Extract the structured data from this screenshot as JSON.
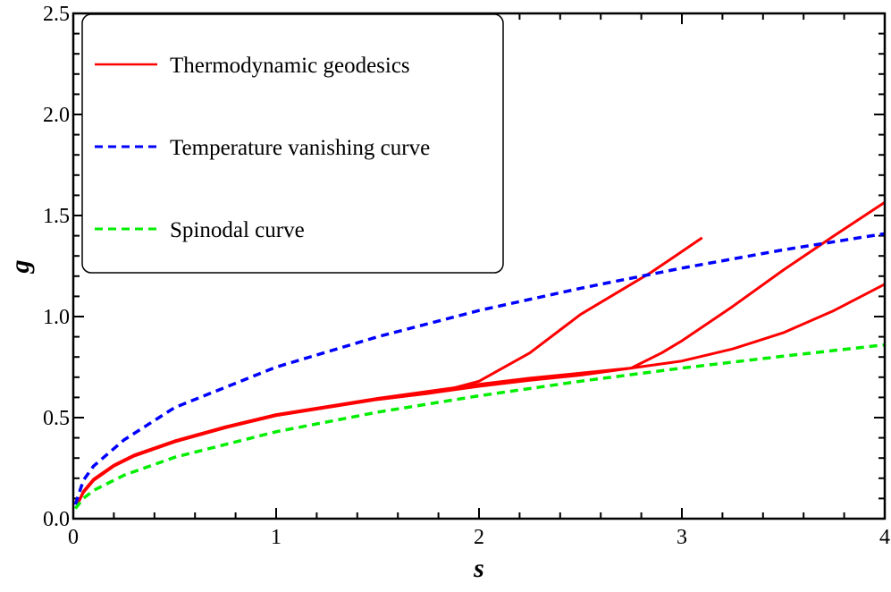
{
  "chart_data": {
    "type": "line",
    "title": "",
    "xlabel": "s",
    "ylabel": "g",
    "xlim": [
      0,
      4
    ],
    "ylim": [
      0,
      2.5
    ],
    "xticks": [
      "0",
      "1",
      "2",
      "3",
      "4"
    ],
    "yticks": [
      "0.0",
      "0.5",
      "1.0",
      "1.5",
      "2.0",
      "2.5"
    ],
    "grid": false,
    "legend_position": "top-left",
    "legend": [
      {
        "label": "Thermodynamic geodesics",
        "color": "#ff0000",
        "style": "solid"
      },
      {
        "label": "Temperature vanishing curve",
        "color": "#0000ff",
        "style": "dashed"
      },
      {
        "label": "Spinodal curve",
        "color": "#00ee00",
        "style": "dashed"
      }
    ],
    "series": [
      {
        "group": "Thermodynamic geodesics",
        "color": "#ff0000",
        "style": "solid",
        "points": [
          [
            0.02,
            0.07
          ],
          [
            0.05,
            0.13
          ],
          [
            0.1,
            0.19
          ],
          [
            0.2,
            0.26
          ],
          [
            0.3,
            0.31
          ],
          [
            0.5,
            0.38
          ],
          [
            0.75,
            0.45
          ],
          [
            1,
            0.51
          ],
          [
            1.25,
            0.55
          ],
          [
            1.5,
            0.59
          ],
          [
            1.75,
            0.62
          ],
          [
            1.85,
            0.64
          ],
          [
            2.0,
            0.68
          ],
          [
            2.25,
            0.82
          ],
          [
            2.5,
            1.01
          ],
          [
            2.75,
            1.16
          ],
          [
            2.85,
            1.22
          ],
          [
            3.1,
            1.39
          ]
        ]
      },
      {
        "group": "Thermodynamic geodesics",
        "color": "#ff0000",
        "style": "solid",
        "points": [
          [
            0.02,
            0.07
          ],
          [
            0.05,
            0.13
          ],
          [
            0.1,
            0.19
          ],
          [
            0.2,
            0.26
          ],
          [
            0.3,
            0.31
          ],
          [
            0.5,
            0.38
          ],
          [
            0.75,
            0.45
          ],
          [
            1,
            0.51
          ],
          [
            1.25,
            0.55
          ],
          [
            1.5,
            0.59
          ],
          [
            1.75,
            0.62
          ],
          [
            2.0,
            0.655
          ],
          [
            2.25,
            0.685
          ],
          [
            2.5,
            0.71
          ],
          [
            2.75,
            0.745
          ],
          [
            2.9,
            0.82
          ],
          [
            3.0,
            0.88
          ],
          [
            3.25,
            1.05
          ],
          [
            3.5,
            1.23
          ],
          [
            3.75,
            1.4
          ],
          [
            4.0,
            1.565
          ]
        ]
      },
      {
        "group": "Thermodynamic geodesics",
        "color": "#ff0000",
        "style": "solid",
        "points": [
          [
            0.02,
            0.07
          ],
          [
            0.05,
            0.135
          ],
          [
            0.1,
            0.195
          ],
          [
            0.2,
            0.265
          ],
          [
            0.3,
            0.315
          ],
          [
            0.5,
            0.385
          ],
          [
            0.75,
            0.455
          ],
          [
            1,
            0.515
          ],
          [
            1.25,
            0.555
          ],
          [
            1.5,
            0.595
          ],
          [
            1.75,
            0.63
          ],
          [
            2.0,
            0.665
          ],
          [
            2.25,
            0.695
          ],
          [
            2.5,
            0.72
          ],
          [
            2.75,
            0.745
          ],
          [
            3.0,
            0.78
          ],
          [
            3.25,
            0.84
          ],
          [
            3.5,
            0.92
          ],
          [
            3.75,
            1.03
          ],
          [
            4.0,
            1.16
          ]
        ]
      },
      {
        "group": "Temperature vanishing curve",
        "color": "#0000ff",
        "style": "dashed",
        "points": [
          [
            0.01,
            0.07
          ],
          [
            0.05,
            0.19
          ],
          [
            0.1,
            0.26
          ],
          [
            0.25,
            0.39
          ],
          [
            0.5,
            0.55
          ],
          [
            1,
            0.75
          ],
          [
            1.5,
            0.9
          ],
          [
            2,
            1.03
          ],
          [
            2.5,
            1.14
          ],
          [
            3,
            1.24
          ],
          [
            3.5,
            1.33
          ],
          [
            4,
            1.41
          ]
        ]
      },
      {
        "group": "Spinodal curve",
        "color": "#00ee00",
        "style": "dashed",
        "points": [
          [
            0.01,
            0.05
          ],
          [
            0.05,
            0.1
          ],
          [
            0.1,
            0.14
          ],
          [
            0.25,
            0.215
          ],
          [
            0.5,
            0.304
          ],
          [
            1,
            0.43
          ],
          [
            1.5,
            0.527
          ],
          [
            2,
            0.608
          ],
          [
            2.5,
            0.68
          ],
          [
            3,
            0.745
          ],
          [
            3.5,
            0.804
          ],
          [
            4,
            0.86
          ]
        ]
      }
    ]
  }
}
